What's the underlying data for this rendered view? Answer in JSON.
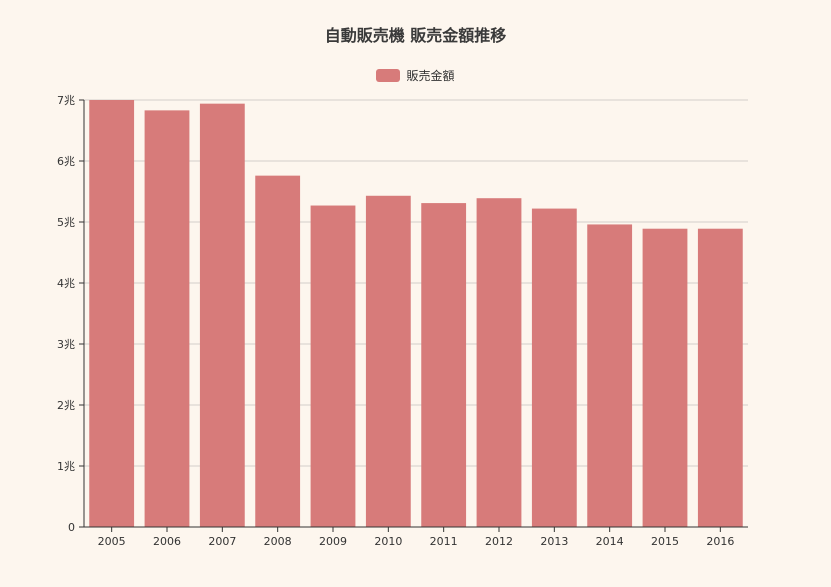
{
  "chart_data": {
    "type": "bar",
    "title": "自動販売機 販売金額推移",
    "xlabel": "",
    "ylabel": "",
    "categories": [
      "2005",
      "2006",
      "2007",
      "2008",
      "2009",
      "2010",
      "2011",
      "2012",
      "2013",
      "2014",
      "2015",
      "2016"
    ],
    "series": [
      {
        "name": "販売金額",
        "color": "#d77b7a",
        "values": [
          7.0,
          6.83,
          6.94,
          5.76,
          5.27,
          5.43,
          5.31,
          5.39,
          5.22,
          4.96,
          4.89,
          4.89
        ]
      }
    ],
    "ylim": [
      0,
      7
    ],
    "yticks": [
      "0",
      "1兆",
      "2兆",
      "3兆",
      "4兆",
      "5兆",
      "6兆",
      "7兆"
    ],
    "grid": true,
    "legend_position": "top-center"
  }
}
